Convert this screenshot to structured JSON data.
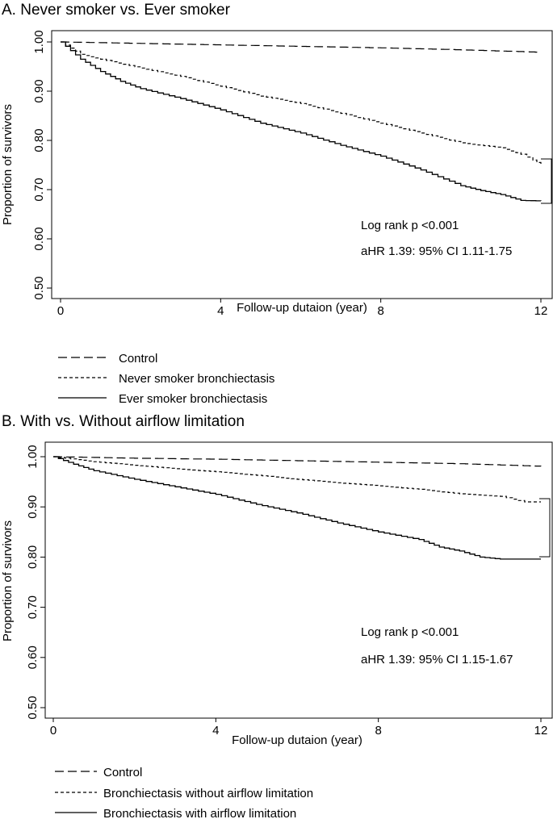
{
  "chart_data": [
    {
      "type": "line",
      "title": "A. Never smoker vs. Ever smoker",
      "xlabel": "Follow-up dutaion (year)",
      "ylabel": "Proportion of survivors",
      "xlim": [
        0,
        12
      ],
      "ylim": [
        0.5,
        1.0
      ],
      "xticks": [
        "0",
        "4",
        "8",
        "12"
      ],
      "yticks": [
        "0.50",
        "0.60",
        "0.70",
        "0.80",
        "0.90",
        "1.00"
      ],
      "annotations": [
        "Log rank p <0.001",
        "aHR 1.39: 95% CI 1.11-1.75"
      ],
      "legend": [
        "Control",
        "Never smoker bronchiectasis",
        "Ever smoker bronchiectasis"
      ],
      "series": [
        {
          "name": "Control",
          "style": "longdash",
          "x": [
            0,
            2,
            4,
            6,
            8,
            10,
            12
          ],
          "y": [
            1.0,
            0.997,
            0.994,
            0.991,
            0.988,
            0.984,
            0.979
          ]
        },
        {
          "name": "Never smoker bronchiectasis",
          "style": "shortdash",
          "x": [
            0,
            0.5,
            1,
            2,
            3,
            4,
            5,
            6,
            7,
            8,
            9,
            10,
            11,
            11.5,
            11.8,
            12
          ],
          "y": [
            1.0,
            0.975,
            0.965,
            0.947,
            0.93,
            0.91,
            0.89,
            0.875,
            0.855,
            0.835,
            0.815,
            0.795,
            0.785,
            0.772,
            0.76,
            0.75
          ]
        },
        {
          "name": "Ever smoker bronchiectasis",
          "style": "solid",
          "x": [
            0,
            0.5,
            1,
            1.5,
            2,
            3,
            4,
            5,
            6,
            7,
            8,
            9,
            10,
            10.5,
            11,
            11.5,
            12
          ],
          "y": [
            1.0,
            0.965,
            0.94,
            0.92,
            0.905,
            0.885,
            0.862,
            0.835,
            0.815,
            0.79,
            0.768,
            0.74,
            0.708,
            0.698,
            0.69,
            0.678,
            0.677
          ]
        }
      ]
    },
    {
      "type": "line",
      "title": "B. With vs. Without airflow limitation",
      "xlabel": "Follow-up dutaion (year)",
      "ylabel": "Proportion of survivors",
      "xlim": [
        0,
        12
      ],
      "ylim": [
        0.5,
        1.0
      ],
      "xticks": [
        "0",
        "4",
        "8",
        "12"
      ],
      "yticks": [
        "0.50",
        "0.60",
        "0.70",
        "0.80",
        "0.90",
        "1.00"
      ],
      "annotations": [
        "Log rank p <0.001",
        "aHR 1.39: 95% CI 1.15-1.67"
      ],
      "legend": [
        "Control",
        "Bronchiectasis without airflow limitation",
        "Bronchiectasis with airflow limitation"
      ],
      "series": [
        {
          "name": "Control",
          "style": "longdash",
          "x": [
            0,
            2,
            4,
            6,
            8,
            10,
            12
          ],
          "y": [
            1.0,
            0.997,
            0.995,
            0.992,
            0.989,
            0.986,
            0.981
          ]
        },
        {
          "name": "Bronchiectasis without airflow limitation",
          "style": "shortdash",
          "x": [
            0,
            1,
            2,
            3,
            4,
            5,
            6,
            7,
            8,
            9,
            10,
            11,
            11.6,
            12
          ],
          "y": [
            1.0,
            0.99,
            0.983,
            0.976,
            0.97,
            0.963,
            0.955,
            0.948,
            0.942,
            0.935,
            0.926,
            0.921,
            0.91,
            0.91
          ]
        },
        {
          "name": "Bronchiectasis with airflow limitation",
          "style": "solid",
          "x": [
            0,
            0.5,
            1,
            2,
            3,
            4,
            5,
            6,
            7,
            8,
            9,
            9.5,
            10,
            10.5,
            11,
            11.5,
            12
          ],
          "y": [
            1.0,
            0.985,
            0.972,
            0.955,
            0.94,
            0.925,
            0.905,
            0.888,
            0.868,
            0.85,
            0.835,
            0.82,
            0.812,
            0.8,
            0.796,
            0.796,
            0.796
          ]
        }
      ]
    }
  ]
}
